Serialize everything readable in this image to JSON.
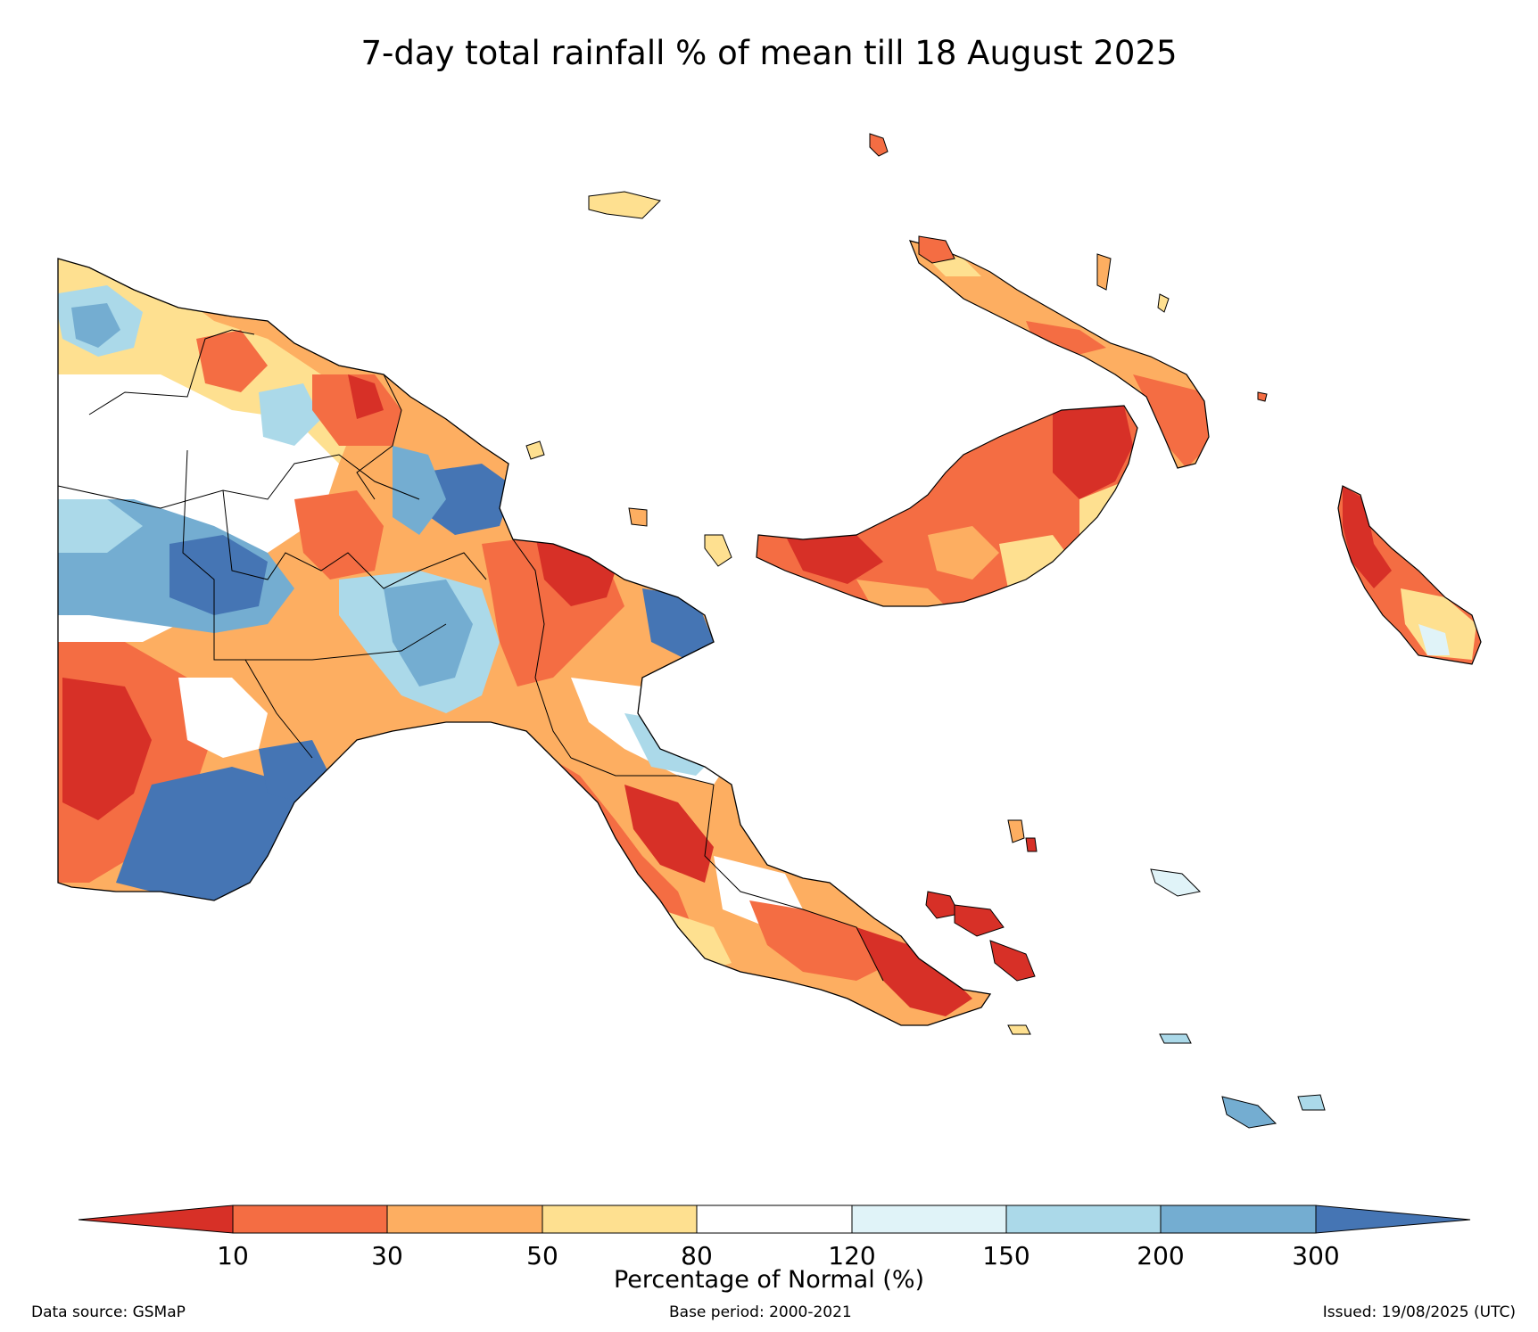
{
  "title": "7-day total rainfall % of mean till 18 August 2025",
  "colorbar": {
    "label": "Percentage of Normal (%)",
    "ticks": [
      "10",
      "30",
      "50",
      "80",
      "120",
      "150",
      "200",
      "300"
    ],
    "colors": [
      "#d73027",
      "#f46d43",
      "#fdae61",
      "#fee090",
      "#ffffff",
      "#e0f3f8",
      "#abd9e9",
      "#74add1",
      "#4575b4"
    ]
  },
  "footer": {
    "source": "Data source: GSMaP",
    "base_period": "Base period: 2000-2021",
    "issued": "Issued: 19/08/2025 (UTC)"
  },
  "map": {
    "region": "Papua New Guinea",
    "variable": "7-day total rainfall % of mean"
  }
}
